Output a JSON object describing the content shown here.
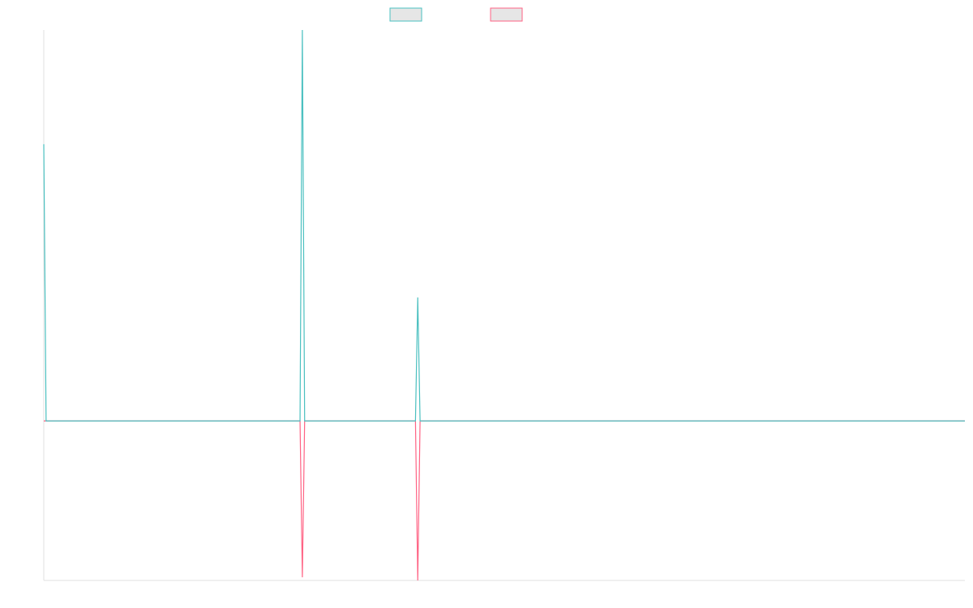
{
  "chart_data": {
    "type": "line",
    "title": "",
    "xlabel": "",
    "ylabel": "",
    "x": [
      0,
      1,
      2,
      3,
      4,
      5,
      6,
      7,
      8,
      9,
      10,
      11,
      12,
      13,
      14,
      15,
      16,
      17,
      18,
      19,
      20,
      21,
      22,
      23,
      24,
      25,
      26,
      27,
      28,
      29,
      30,
      31,
      32,
      33,
      34,
      35,
      36,
      37,
      38,
      39,
      40,
      41,
      42,
      43,
      44,
      45,
      46,
      47,
      48,
      49,
      50,
      51,
      52,
      53,
      54,
      55,
      56,
      57,
      58,
      59,
      60,
      61,
      62,
      63,
      64,
      65,
      66,
      67,
      68,
      69,
      70,
      71,
      72,
      73,
      74,
      75,
      76,
      77,
      78,
      79,
      80,
      81,
      82,
      83,
      84,
      85,
      86,
      87,
      88,
      89,
      90,
      91,
      92,
      93,
      94,
      95,
      96,
      97,
      98,
      99,
      100,
      101,
      102,
      103,
      104,
      105,
      106,
      107,
      108,
      109,
      110,
      111,
      112,
      113,
      114,
      115,
      116,
      117,
      118,
      119,
      120,
      121,
      122,
      123,
      124,
      125,
      126,
      127,
      128,
      129,
      130,
      131,
      132,
      133,
      134,
      135,
      136,
      137,
      138,
      139,
      140,
      141,
      142,
      143,
      144,
      145,
      146,
      147,
      148,
      149,
      150,
      151,
      152,
      153,
      154,
      155,
      156,
      157,
      158,
      159,
      160,
      161,
      162,
      163,
      164,
      165,
      166,
      167,
      168,
      169,
      170,
      171,
      172,
      173,
      174,
      175,
      176,
      177,
      178,
      179,
      180,
      181,
      182,
      183,
      184,
      185,
      186,
      187,
      188,
      189,
      190,
      191,
      192,
      193,
      194,
      195,
      196,
      197,
      198,
      199,
      200,
      201,
      202,
      203,
      204,
      205,
      206,
      207,
      208,
      209,
      210,
      211,
      212,
      213,
      214,
      215,
      216,
      217,
      218,
      219,
      220,
      221,
      222,
      223,
      224,
      225,
      226,
      227,
      228,
      229,
      230,
      231,
      232,
      233,
      234,
      235,
      236,
      237,
      238,
      239,
      240,
      241,
      242,
      243,
      244,
      245,
      246,
      247,
      248,
      249,
      250,
      251,
      252,
      253,
      254,
      255,
      256,
      257,
      258,
      259,
      260,
      261,
      262,
      263,
      264,
      265,
      266,
      267,
      268,
      269,
      270,
      271,
      272,
      273,
      274,
      275,
      276,
      277,
      278,
      279,
      280,
      281,
      282,
      283,
      284,
      285,
      286,
      287,
      288,
      289,
      290,
      291,
      292,
      293,
      294,
      295,
      296,
      297,
      298,
      299,
      300,
      301,
      302,
      303,
      304,
      305,
      306,
      307,
      308,
      309,
      310,
      311,
      312,
      313,
      314,
      315,
      316,
      317,
      318,
      319,
      320,
      321,
      322,
      323,
      324,
      325,
      326,
      327,
      328,
      329,
      330,
      331,
      332,
      333,
      334,
      335,
      336,
      337,
      338,
      339,
      340,
      341,
      342,
      343,
      344,
      345,
      346,
      347,
      348,
      349,
      350,
      351,
      352,
      353,
      354,
      355,
      356,
      357,
      358,
      359,
      360,
      361,
      362,
      363,
      364,
      365,
      366,
      367,
      368,
      369,
      370,
      371,
      372,
      373,
      374,
      375,
      376,
      377,
      378,
      379,
      380,
      381,
      382,
      383,
      384,
      385,
      386,
      387,
      388,
      389,
      390,
      391,
      392,
      393,
      394,
      395,
      396,
      397,
      398,
      399
    ],
    "ylim": [
      -1.02,
      2.5
    ],
    "xlim": [
      0,
      399
    ],
    "grid": false,
    "legend_placement": "top-center",
    "series": [
      {
        "color": "#4bc0c0",
        "legend_fill": "#e6e6e6",
        "spikes": [
          {
            "x": 0,
            "y": 1.77
          },
          {
            "x": 112,
            "y": 2.5
          },
          {
            "x": 162,
            "y": 0.79
          }
        ],
        "baseline": 0
      },
      {
        "color": "#ff6384",
        "legend_fill": "#e6e6e6",
        "spikes": [
          {
            "x": 112,
            "y": -1.0
          },
          {
            "x": 162,
            "y": -1.02
          }
        ],
        "baseline": 0
      }
    ]
  }
}
